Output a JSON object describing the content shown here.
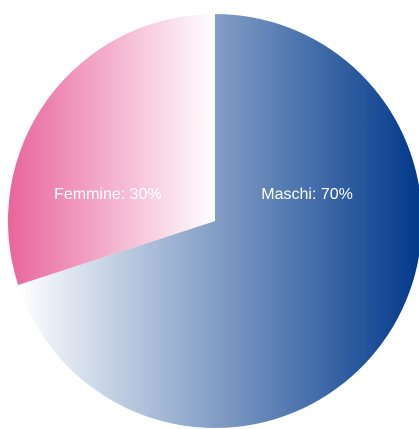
{
  "chart_data": {
    "type": "pie",
    "categories": [
      "Maschi",
      "Femmine"
    ],
    "values": [
      70,
      30
    ],
    "value_labels": [
      "Maschi: 70%",
      "Femmine: 30%"
    ],
    "colors": [
      {
        "from": "#ffffff",
        "to": "#00388a"
      },
      {
        "from": "#e9649c",
        "to": "#ffffff"
      }
    ],
    "start_angle": 0
  }
}
